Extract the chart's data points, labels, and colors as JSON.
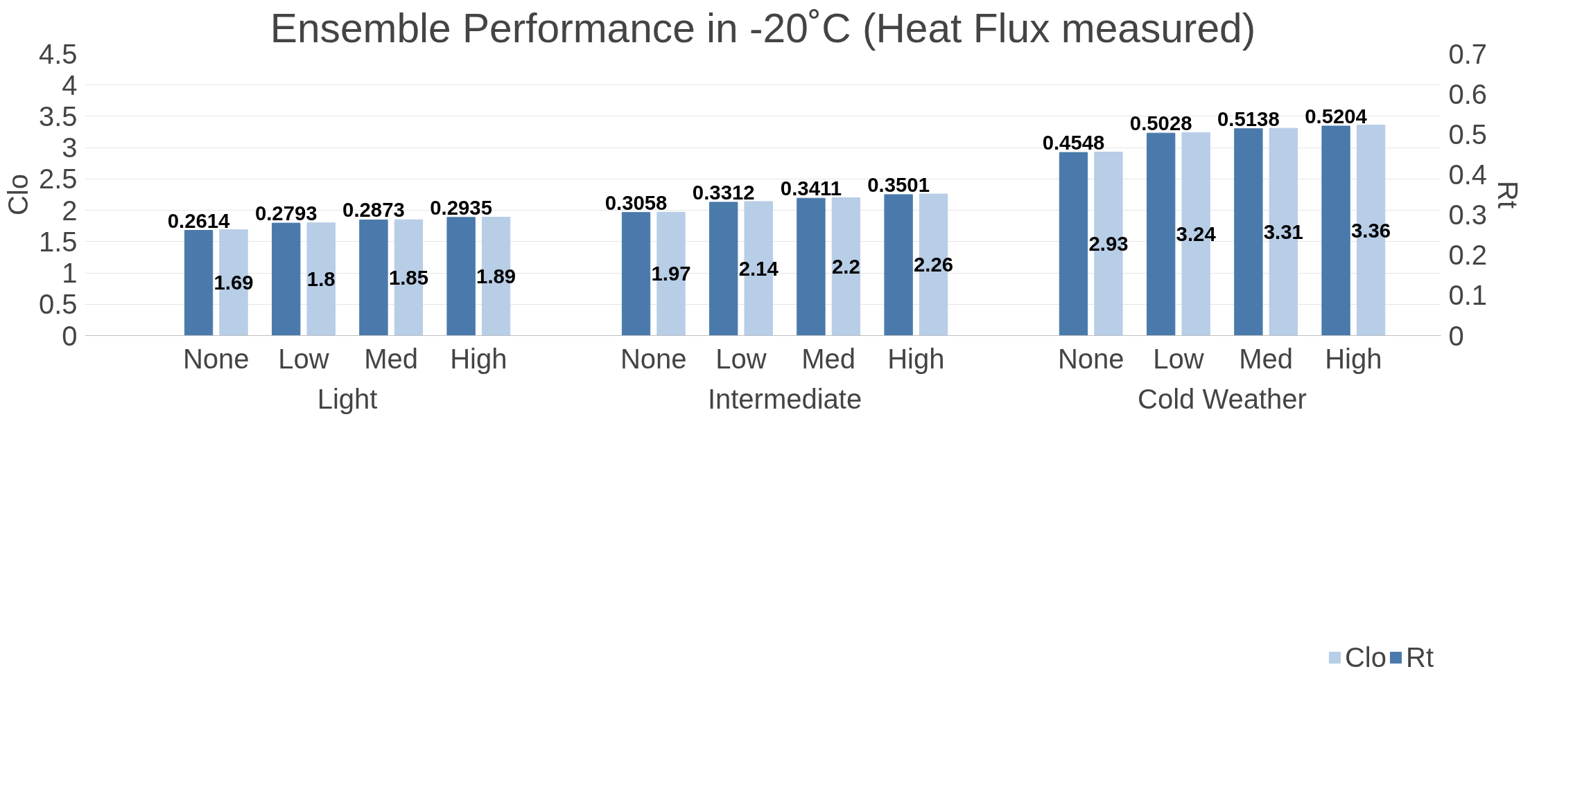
{
  "chart_data": {
    "type": "bar",
    "title": "Ensemble Performance in -20˚C (Heat Flux measured)",
    "ylabel": "Clo",
    "y2label": "Rt",
    "categories": [
      "None",
      "Low",
      "Med",
      "High",
      "None",
      "Low",
      "Med",
      "High",
      "None",
      "Low",
      "Med",
      "High"
    ],
    "annotations": [
      "Light",
      "Intermediate",
      "Cold Weather"
    ],
    "series": [
      {
        "name": "Rt",
        "color": "#4a7aab",
        "axis": "y2",
        "values": [
          0.2614,
          0.2793,
          0.2873,
          0.2935,
          0.3058,
          0.3312,
          0.3411,
          0.3501,
          0.4548,
          0.5028,
          0.5138,
          0.5204
        ]
      },
      {
        "name": "Clo",
        "color": "#b8cde6",
        "values": [
          1.69,
          1.8,
          1.85,
          1.89,
          1.97,
          2.14,
          2.2,
          2.26,
          2.93,
          3.24,
          3.31,
          3.36
        ]
      }
    ],
    "ylim": [
      0,
      4.5
    ],
    "yticks": [
      0,
      0.5,
      1,
      1.5,
      2,
      2.5,
      3,
      3.5,
      4,
      4.5
    ],
    "y2lim": [
      0,
      0.7
    ],
    "y2ticks": [
      0,
      0.1,
      0.2,
      0.3,
      0.4,
      0.5,
      0.6,
      0.7
    ],
    "grid": "y",
    "legend": "bottom",
    "data_labels": true
  }
}
